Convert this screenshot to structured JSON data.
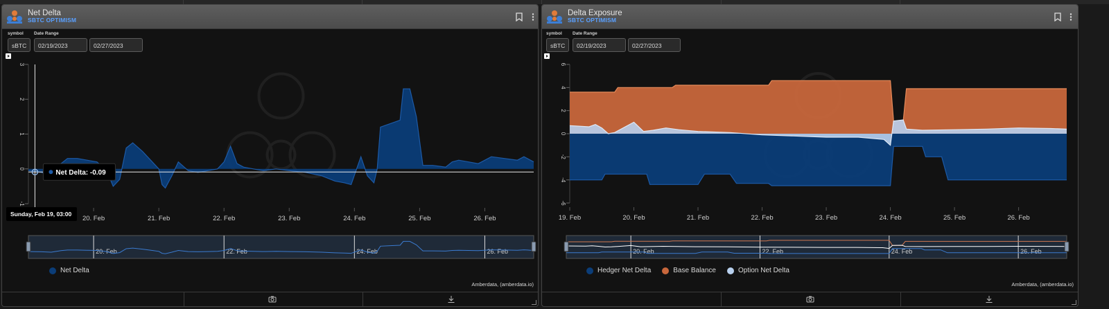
{
  "panels": [
    {
      "title": "Net Delta",
      "subtitle": "SBTC OPTIMISM",
      "symbol_label": "symbol",
      "date_range_label": "Date Range",
      "symbol_value": "sBTC",
      "date_start": "02/19/2023",
      "date_end": "02/27/2023",
      "credit": "Amberdata, (amberdata.io)",
      "tooltip": {
        "date": "Sunday, Feb 19, 03:00",
        "series": "Net Delta",
        "value": "-0.09"
      }
    },
    {
      "title": "Delta Exposure",
      "subtitle": "SBTC OPTIMISM",
      "symbol_label": "symbol",
      "date_range_label": "Date Range",
      "symbol_value": "sBTC",
      "date_start": "02/19/2023",
      "date_end": "02/27/2023",
      "credit": "Amberdata, (amberdata.io)"
    }
  ],
  "icons": [
    "bookmark-icon",
    "more-vert-icon",
    "camera-icon",
    "download-icon",
    "expand-icon"
  ],
  "colors": {
    "net_delta": "#0b3d78",
    "base_balance": "#c8673c",
    "option_net_delta": "#b8d0ee",
    "accent": "#5aa0ff"
  },
  "chart_data": [
    {
      "type": "area",
      "title": "",
      "x_unit": "day of Feb 2023",
      "xlim": [
        19.0,
        26.75
      ],
      "ylim": [
        -1,
        3
      ],
      "yticks": [
        "-1",
        "0",
        "1",
        "2",
        "3"
      ],
      "xticks": [
        "20. Feb",
        "21. Feb",
        "22. Feb",
        "23. Feb",
        "24. Feb",
        "25. Feb",
        "26. Feb"
      ],
      "navigator_ticks": [
        "20. Feb",
        "22. Feb",
        "24. Feb",
        "26. Feb"
      ],
      "legend_position": "bottom-left",
      "series": [
        {
          "name": "Net Delta",
          "color": "#0b3d78",
          "points": [
            [
              19.0,
              -0.05
            ],
            [
              19.2,
              -0.1
            ],
            [
              19.35,
              -0.2
            ],
            [
              19.5,
              0.15
            ],
            [
              19.6,
              0.3
            ],
            [
              19.75,
              0.3
            ],
            [
              19.9,
              0.25
            ],
            [
              20.05,
              0.2
            ],
            [
              20.2,
              -0.05
            ],
            [
              20.3,
              -0.5
            ],
            [
              20.4,
              -0.3
            ],
            [
              20.5,
              0.6
            ],
            [
              20.6,
              0.75
            ],
            [
              20.75,
              0.5
            ],
            [
              20.9,
              0.2
            ],
            [
              21.0,
              0.0
            ],
            [
              21.05,
              -0.45
            ],
            [
              21.1,
              -0.55
            ],
            [
              21.2,
              -0.2
            ],
            [
              21.3,
              0.2
            ],
            [
              21.45,
              -0.05
            ],
            [
              21.6,
              -0.1
            ],
            [
              21.75,
              -0.05
            ],
            [
              21.9,
              0.0
            ],
            [
              22.0,
              0.2
            ],
            [
              22.1,
              0.65
            ],
            [
              22.2,
              0.15
            ],
            [
              22.3,
              0.05
            ],
            [
              22.45,
              0.0
            ],
            [
              22.6,
              -0.05
            ],
            [
              22.8,
              0.0
            ],
            [
              23.0,
              -0.05
            ],
            [
              23.25,
              -0.1
            ],
            [
              23.5,
              -0.2
            ],
            [
              23.7,
              -0.35
            ],
            [
              23.85,
              -0.4
            ],
            [
              23.95,
              -0.45
            ],
            [
              24.1,
              0.35
            ],
            [
              24.2,
              -0.2
            ],
            [
              24.3,
              -0.4
            ],
            [
              24.35,
              0.0
            ],
            [
              24.4,
              1.2
            ],
            [
              24.55,
              1.3
            ],
            [
              24.7,
              1.4
            ],
            [
              24.75,
              2.3
            ],
            [
              24.85,
              2.3
            ],
            [
              24.95,
              1.5
            ],
            [
              25.05,
              0.1
            ],
            [
              25.2,
              0.1
            ],
            [
              25.4,
              0.05
            ],
            [
              25.5,
              0.2
            ],
            [
              25.6,
              0.25
            ],
            [
              25.75,
              0.2
            ],
            [
              25.9,
              0.15
            ],
            [
              26.1,
              0.35
            ],
            [
              26.3,
              0.3
            ],
            [
              26.5,
              0.25
            ],
            [
              26.6,
              0.35
            ],
            [
              26.75,
              0.2
            ]
          ]
        }
      ]
    },
    {
      "type": "area",
      "title": "",
      "x_unit": "day of Feb 2023",
      "xlim": [
        19.0,
        26.75
      ],
      "ylim": [
        -6,
        6
      ],
      "yticks": [
        "-6",
        "-4",
        "-2",
        "0",
        "2",
        "4",
        "6"
      ],
      "xticks": [
        "19. Feb",
        "20. Feb",
        "21. Feb",
        "22. Feb",
        "23. Feb",
        "24. Feb",
        "25. Feb",
        "26. Feb"
      ],
      "navigator_ticks": [
        "20. Feb",
        "22. Feb",
        "24. Feb",
        "26. Feb"
      ],
      "legend_position": "bottom-center",
      "series": [
        {
          "name": "Hedger Net Delta",
          "color": "#0b3d78",
          "points": [
            [
              19.0,
              -4.0
            ],
            [
              19.5,
              -4.0
            ],
            [
              19.55,
              -3.5
            ],
            [
              20.2,
              -3.5
            ],
            [
              20.25,
              -4.4
            ],
            [
              21.0,
              -4.4
            ],
            [
              21.1,
              -3.5
            ],
            [
              21.5,
              -3.5
            ],
            [
              21.6,
              -4.3
            ],
            [
              22.1,
              -4.3
            ],
            [
              22.15,
              -4.5
            ],
            [
              24.0,
              -4.5
            ],
            [
              24.05,
              -1.1
            ],
            [
              24.5,
              -1.1
            ],
            [
              24.55,
              -2.0
            ],
            [
              24.8,
              -2.0
            ],
            [
              24.9,
              -4.0
            ],
            [
              26.75,
              -4.0
            ]
          ]
        },
        {
          "name": "Base Balance",
          "color": "#c8673c",
          "points": [
            [
              19.0,
              3.6
            ],
            [
              19.7,
              3.6
            ],
            [
              19.75,
              4.0
            ],
            [
              20.6,
              4.0
            ],
            [
              20.65,
              4.2
            ],
            [
              22.1,
              4.2
            ],
            [
              22.15,
              4.6
            ],
            [
              24.0,
              4.6
            ],
            [
              24.05,
              1.1
            ],
            [
              24.2,
              1.1
            ],
            [
              24.25,
              3.9
            ],
            [
              26.75,
              3.9
            ]
          ]
        },
        {
          "name": "Option Net Delta",
          "color": "#b8d0ee",
          "points": [
            [
              19.0,
              0.7
            ],
            [
              19.3,
              0.6
            ],
            [
              19.4,
              0.8
            ],
            [
              19.5,
              0.5
            ],
            [
              19.6,
              0.0
            ],
            [
              19.7,
              0.1
            ],
            [
              20.0,
              1.0
            ],
            [
              20.15,
              0.2
            ],
            [
              20.3,
              0.3
            ],
            [
              20.5,
              0.5
            ],
            [
              20.7,
              0.35
            ],
            [
              21.0,
              0.2
            ],
            [
              21.5,
              0.1
            ],
            [
              22.0,
              -0.1
            ],
            [
              22.5,
              -0.2
            ],
            [
              23.0,
              -0.3
            ],
            [
              23.5,
              -0.3
            ],
            [
              23.9,
              -0.5
            ],
            [
              24.0,
              -1.0
            ],
            [
              24.05,
              1.1
            ],
            [
              24.2,
              1.2
            ],
            [
              24.25,
              0.4
            ],
            [
              24.5,
              0.3
            ],
            [
              25.0,
              0.35
            ],
            [
              25.5,
              0.4
            ],
            [
              26.0,
              0.5
            ],
            [
              26.5,
              0.45
            ],
            [
              26.75,
              0.4
            ]
          ]
        }
      ]
    }
  ]
}
